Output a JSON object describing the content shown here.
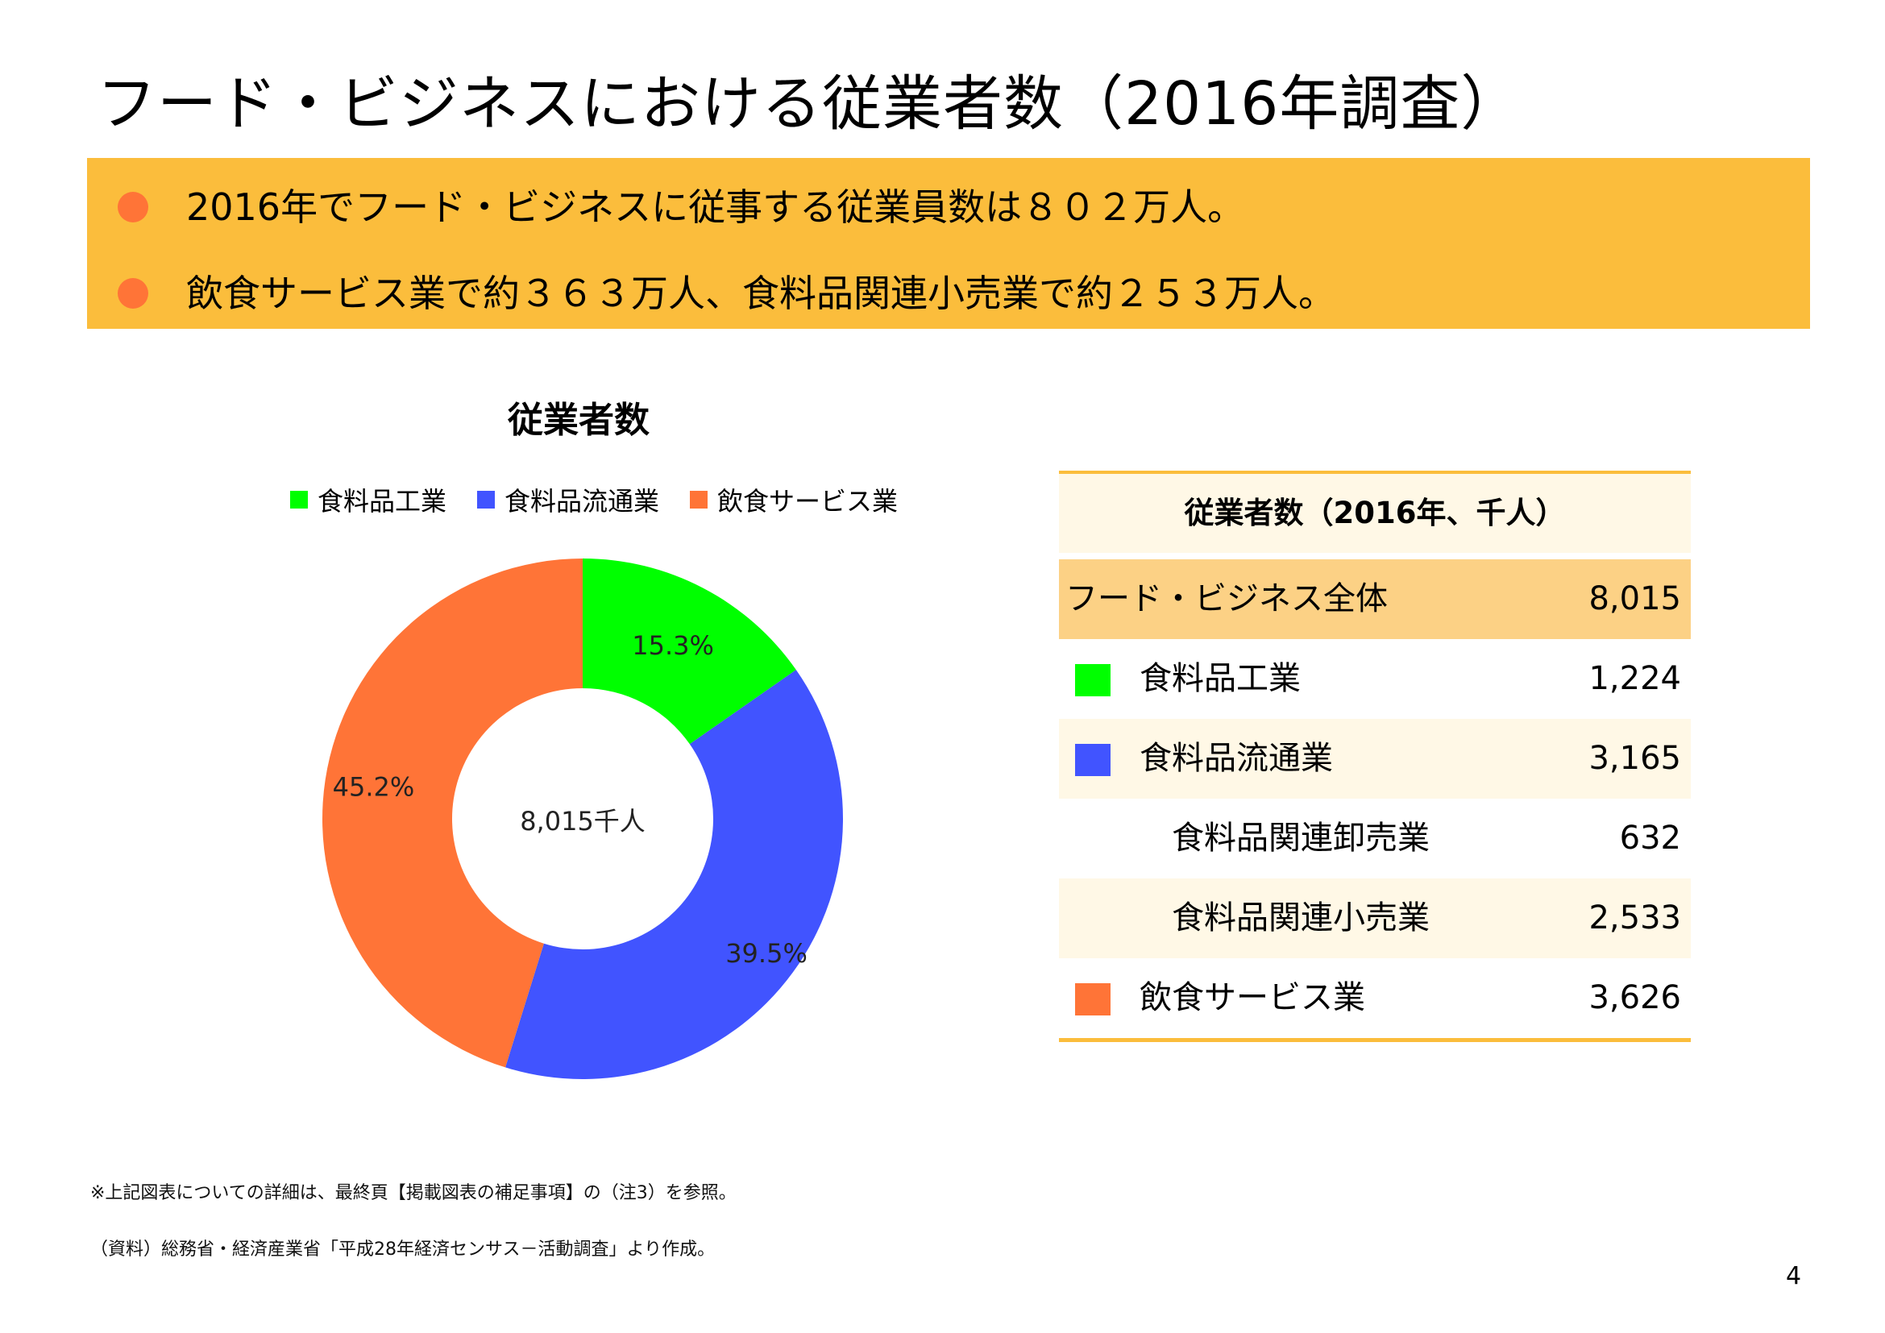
{
  "header": {
    "title": "フード・ビジネスにおける従業者数（2016年調査）"
  },
  "summary": {
    "bullets": [
      "2016年でフード・ビジネスに従事する従業員数は８０２万人。",
      "飲食サービス業で約３６３万人、食料品関連小売業で約２５３万人。"
    ],
    "bullet_color": "#ff7437",
    "banner_color": "#fbbd3c"
  },
  "chart_data": {
    "type": "pie",
    "title": "従業者数",
    "center_label": "8,015千人",
    "legend_position": "top",
    "series": [
      {
        "name": "食料品工業",
        "value": 15.3,
        "label": "15.3%",
        "color": "#00ff00"
      },
      {
        "name": "食料品流通業",
        "value": 39.5,
        "label": "39.5%",
        "color": "#4154ff"
      },
      {
        "name": "飲食サービス業",
        "value": 45.2,
        "label": "45.2%",
        "color": "#ff7437"
      }
    ]
  },
  "table": {
    "header": "従業者数（2016年、千人）",
    "rows": [
      {
        "label": "フード・ビジネス全体",
        "value": "8,015",
        "style": "total",
        "swatch": "",
        "indent": 0
      },
      {
        "label": "食料品工業",
        "value": "1,224",
        "style": "plain",
        "swatch": "#00ff00",
        "indent": 1
      },
      {
        "label": "食料品流通業",
        "value": "3,165",
        "style": "shade",
        "swatch": "#4154ff",
        "indent": 1
      },
      {
        "label": "食料品関連卸売業",
        "value": "632",
        "style": "plain",
        "swatch": "",
        "indent": 2
      },
      {
        "label": "食料品関連小売業",
        "value": "2,533",
        "style": "shade",
        "swatch": "",
        "indent": 2
      },
      {
        "label": "飲食サービス業",
        "value": "3,626",
        "style": "plain",
        "swatch": "#ff7437",
        "indent": 1
      }
    ]
  },
  "notes": {
    "note1": "※上記図表についての詳細は、最終頁【掲載図表の補足事項】の（注3）を参照。",
    "note2": "（資料）総務省・経済産業省「平成28年経済センサス－活動調査」より作成。"
  },
  "page_number": "4"
}
